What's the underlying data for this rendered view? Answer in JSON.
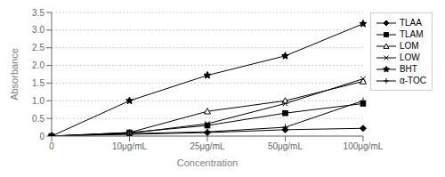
{
  "chart_data": {
    "type": "line",
    "xlabel": "Concentration",
    "ylabel": "Absorbance",
    "categories": [
      "0",
      "10μg/mL",
      "25μg/mL",
      "50μg/mL",
      "100μg/mL"
    ],
    "series": [
      {
        "name": "TLAA",
        "color": "#000000",
        "marker": "diamond",
        "values": [
          0,
          0.05,
          0.1,
          0.18,
          0.22
        ]
      },
      {
        "name": "TLAM",
        "color": "#000000",
        "marker": "square",
        "values": [
          0,
          0.1,
          0.3,
          0.65,
          0.92
        ]
      },
      {
        "name": "LOM",
        "color": "#000000",
        "marker": "triangle_open",
        "values": [
          0,
          0.1,
          0.7,
          1.0,
          1.55
        ]
      },
      {
        "name": "LOW",
        "color": "#000000",
        "marker": "x",
        "values": [
          0,
          0.08,
          0.35,
          0.92,
          1.62
        ]
      },
      {
        "name": "BHT",
        "color": "#000000",
        "marker": "star",
        "values": [
          0,
          1.0,
          1.72,
          2.27,
          3.18
        ]
      },
      {
        "name": "α-TOC",
        "color": "#000000",
        "marker": "plus",
        "values": [
          0,
          0.07,
          0.12,
          0.25,
          1.0
        ]
      }
    ],
    "ylim": [
      0,
      3.5
    ],
    "yticks": [
      0,
      0.5,
      {
        "value": 1,
        "label": "1.0"
      },
      1.5,
      {
        "value": 2,
        "label": "2.0"
      },
      2.5,
      {
        "value": 3,
        "label": "3.0"
      },
      3.5
    ],
    "grid": "y",
    "legend": "right"
  }
}
